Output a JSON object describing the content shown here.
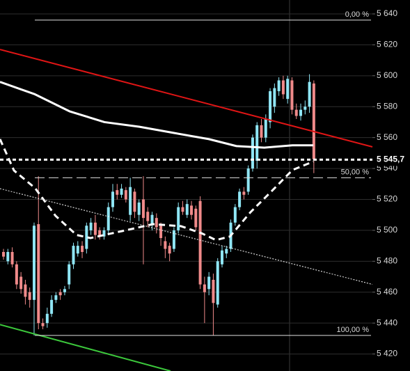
{
  "chart_data": {
    "type": "candlestick",
    "background": "#000000",
    "up_color": "#8fe6f5",
    "down_color": "#f08a8a",
    "ylim": [
      5409,
      5649
    ],
    "xlim": [
      -0.8,
      84.4
    ],
    "grid": true,
    "yticks": [
      {
        "value": 5420,
        "label": "5 420"
      },
      {
        "value": 5440,
        "label": "5 440"
      },
      {
        "value": 5460,
        "label": "5 460"
      },
      {
        "value": 5480,
        "label": "5 480"
      },
      {
        "value": 5500,
        "label": "5 500"
      },
      {
        "value": 5520,
        "label": "5 520"
      },
      {
        "value": 5540,
        "label": "5 540"
      },
      {
        "value": 5560,
        "label": "5 560"
      },
      {
        "value": 5580,
        "label": "5 580"
      },
      {
        "value": 5600,
        "label": "5 600"
      },
      {
        "value": 5620,
        "label": "5 620"
      },
      {
        "value": 5640,
        "label": "5 640"
      }
    ],
    "open": [
      5486,
      5480,
      5486,
      5478,
      5470,
      5465,
      5460,
      5455,
      5504,
      5440,
      5440,
      5446,
      5455,
      5460,
      5460,
      5465,
      5478,
      5485,
      5490,
      5488,
      5500,
      5505,
      5500,
      5496,
      5500,
      5515,
      5526,
      5523,
      5526,
      5510,
      5525,
      5510,
      5520,
      5512,
      5504,
      5508,
      5503,
      5493,
      5490,
      5488,
      5500,
      5515,
      5510,
      5516,
      5514,
      5519,
      5465,
      5462,
      5468,
      5452,
      5478,
      5485,
      5488,
      5505,
      5515,
      5525,
      5525,
      5540,
      5545,
      5568,
      5560,
      5570,
      5580,
      5590,
      5597,
      5585,
      5597,
      5578,
      5574,
      5578,
      5580,
      5595
    ],
    "high": [
      5488,
      5488,
      5489,
      5480,
      5473,
      5468,
      5463,
      5505,
      5535,
      5443,
      5450,
      5458,
      5460,
      5462,
      5464,
      5480,
      5492,
      5493,
      5493,
      5505,
      5508,
      5510,
      5502,
      5502,
      5518,
      5530,
      5530,
      5530,
      5528,
      5534,
      5527,
      5520,
      5535,
      5515,
      5512,
      5511,
      5505,
      5496,
      5492,
      5502,
      5518,
      5519,
      5520,
      5519,
      5516,
      5522,
      5470,
      5473,
      5472,
      5482,
      5490,
      5490,
      5507,
      5517,
      5527,
      5528,
      5542,
      5562,
      5570,
      5572,
      5575,
      5592,
      5595,
      5599,
      5600,
      5600,
      5599,
      5582,
      5582,
      5584,
      5601,
      5597
    ],
    "low": [
      5481,
      5478,
      5476,
      5462,
      5459,
      5452,
      5450,
      5432,
      5436,
      5436,
      5437,
      5444,
      5453,
      5455,
      5458,
      5462,
      5475,
      5483,
      5482,
      5485,
      5497,
      5494,
      5494,
      5494,
      5498,
      5512,
      5520,
      5521,
      5518,
      5506,
      5508,
      5506,
      5478,
      5502,
      5500,
      5498,
      5490,
      5482,
      5480,
      5486,
      5498,
      5510,
      5508,
      5507,
      5500,
      5462,
      5440,
      5458,
      5432,
      5450,
      5476,
      5482,
      5486,
      5503,
      5513,
      5520,
      5523,
      5538,
      5540,
      5557,
      5557,
      5566,
      5576,
      5587,
      5585,
      5582,
      5575,
      5572,
      5571,
      5575,
      5576,
      5537
    ],
    "close": [
      5483,
      5486,
      5478,
      5465,
      5462,
      5457,
      5455,
      5503,
      5440,
      5438,
      5446,
      5455,
      5458,
      5458,
      5462,
      5478,
      5490,
      5490,
      5486,
      5503,
      5505,
      5497,
      5496,
      5500,
      5515,
      5525,
      5523,
      5527,
      5520,
      5528,
      5512,
      5518,
      5508,
      5506,
      5510,
      5502,
      5495,
      5488,
      5485,
      5500,
      5515,
      5512,
      5517,
      5510,
      5502,
      5465,
      5460,
      5470,
      5453,
      5480,
      5487,
      5488,
      5505,
      5515,
      5525,
      5523,
      5540,
      5560,
      5568,
      5560,
      5572,
      5590,
      5592,
      5597,
      5588,
      5598,
      5578,
      5574,
      5578,
      5580,
      5596,
      5546
    ],
    "lines": [
      {
        "color": "#ffffff",
        "style": "solid-thick",
        "x": [
          -0.8,
          7.2,
          15.1,
          23.1,
          31.1,
          39.0,
          47.0,
          53.3,
          59.7,
          66.1,
          70.9
        ],
        "values": [
          5596,
          5588,
          5577,
          5570,
          5567,
          5563,
          5559,
          5554.5,
          5553.5,
          5555,
          5555
        ]
      },
      {
        "color": "#ffffff",
        "style": "dashed-thick",
        "x": [
          -0.8,
          2.4,
          7.2,
          11.9,
          16.7,
          19.9,
          24.7,
          29.5,
          34.2,
          40.6,
          45.4,
          48.6,
          51.8,
          56.5,
          61.3,
          66.1,
          70.9
        ],
        "values": [
          5559,
          5538.7,
          5527.4,
          5509.4,
          5497,
          5495,
          5498,
          5501,
          5504,
          5502.7,
          5498,
          5493.7,
          5496,
          5511.7,
          5525.2,
          5539,
          5544.5
        ]
      },
      {
        "color": "#e01515",
        "style": "solid",
        "x": [
          -0.8,
          84.4
        ],
        "values": [
          5617,
          5554
        ]
      },
      {
        "color": "#ffffff",
        "style": "dotted",
        "x": [
          -0.8,
          84.4
        ],
        "values": [
          5527,
          5465
        ]
      },
      {
        "color": "#3cc83c",
        "style": "solid",
        "x": [
          -0.8,
          38.2
        ],
        "values": [
          5439,
          5409
        ]
      }
    ],
    "fib_levels": [
      {
        "value": 5636,
        "label": "0,00 %"
      },
      {
        "value": 5534,
        "label": "50,00 %"
      },
      {
        "value": 5432,
        "label": "100,00 %"
      }
    ],
    "last_price": {
      "value": 5545.7,
      "label": "5 545,7"
    }
  }
}
